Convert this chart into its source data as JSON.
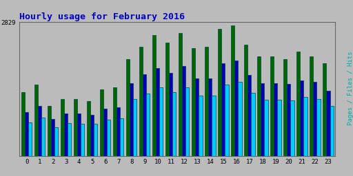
{
  "title": "Hourly usage for February 2016",
  "title_color": "#0000cc",
  "title_fontsize": 9.5,
  "background_color": "#bbbbbb",
  "hours": [
    0,
    1,
    2,
    3,
    4,
    5,
    6,
    7,
    8,
    9,
    10,
    11,
    12,
    13,
    14,
    15,
    16,
    17,
    18,
    19,
    20,
    21,
    22,
    23
  ],
  "ylim": [
    0,
    2829
  ],
  "ytick_val": 2829,
  "hits": [
    1350,
    1500,
    1050,
    1200,
    1200,
    1150,
    1400,
    1450,
    2050,
    2300,
    2550,
    2400,
    2600,
    2280,
    2300,
    2680,
    2750,
    2350,
    2100,
    2100,
    2050,
    2200,
    2100,
    1950
  ],
  "files": [
    930,
    1050,
    780,
    900,
    890,
    860,
    990,
    1030,
    1530,
    1730,
    1850,
    1750,
    1900,
    1640,
    1640,
    1950,
    2010,
    1710,
    1530,
    1530,
    1520,
    1600,
    1560,
    1370
  ],
  "pages": [
    710,
    810,
    600,
    690,
    680,
    670,
    760,
    800,
    1200,
    1320,
    1450,
    1350,
    1450,
    1270,
    1280,
    1510,
    1560,
    1330,
    1180,
    1180,
    1170,
    1240,
    1200,
    1050
  ],
  "hits_color": "#006600",
  "files_color": "#0000bb",
  "pages_color": "#00ccff",
  "bar_width": 0.27,
  "edge_color": "#004444",
  "edge_width": 0.5,
  "grid_color": "#aaaaaa",
  "grid_lw": 0.6,
  "fig_bg": "#bbbbbb",
  "ylabel_right": "Pages / Files / Hits",
  "ylabel_color": "#00aaaa"
}
